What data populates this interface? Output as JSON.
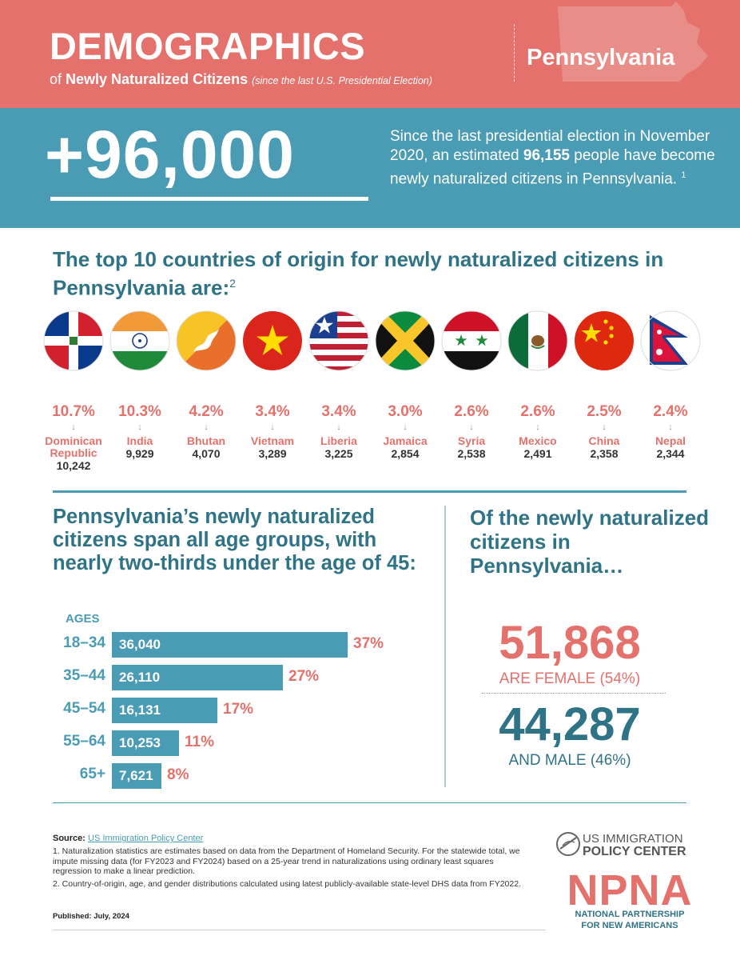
{
  "colors": {
    "coral": "#e4716b",
    "teal": "#4a9bb4",
    "dark_teal": "#2f7386"
  },
  "header": {
    "title": "DEMOGRAPHICS",
    "subtitle_prefix": "of ",
    "subtitle_bold": "Newly Naturalized Citizens",
    "subtitle_note": "(since the last U.S. Presidential Election)",
    "state": "Pennsylvania"
  },
  "highlight": {
    "big_number": "+96,000",
    "desc_1": "Since the last presidential election in November 2020, an estimated ",
    "desc_bold": "96,155",
    "desc_2": " people have become newly naturalized citizens in Pennsylvania.",
    "footnote": "1"
  },
  "countries": {
    "heading": "The top 10 countries of origin for newly naturalized citizens in Pennsylvania are:",
    "footnote": "2",
    "items": [
      {
        "name": "Dominican Republic",
        "pct": "10.7%",
        "count": "10,242",
        "flag": "dominican-republic"
      },
      {
        "name": "India",
        "pct": "10.3%",
        "count": "9,929",
        "flag": "india"
      },
      {
        "name": "Bhutan",
        "pct": "4.2%",
        "count": "4,070",
        "flag": "bhutan"
      },
      {
        "name": "Vietnam",
        "pct": "3.4%",
        "count": "3,289",
        "flag": "vietnam"
      },
      {
        "name": "Liberia",
        "pct": "3.4%",
        "count": "3,225",
        "flag": "liberia"
      },
      {
        "name": "Jamaica",
        "pct": "3.0%",
        "count": "2,854",
        "flag": "jamaica"
      },
      {
        "name": "Syria",
        "pct": "2.6%",
        "count": "2,538",
        "flag": "syria"
      },
      {
        "name": "Mexico",
        "pct": "2.6%",
        "count": "2,491",
        "flag": "mexico"
      },
      {
        "name": "China",
        "pct": "2.5%",
        "count": "2,358",
        "flag": "china"
      },
      {
        "name": "Nepal",
        "pct": "2.4%",
        "count": "2,344",
        "flag": "nepal"
      }
    ]
  },
  "ages": {
    "heading": "Pennsylvania’s newly naturalized citizens span all age groups, with nearly two-thirds under the age of 45:",
    "label": "AGES"
  },
  "gender": {
    "heading": "Of the newly naturalized citizens in Pennsylvania…",
    "female_num": "51,868",
    "female_label": "ARE FEMALE (54%)",
    "male_num": "44,287",
    "male_label": "AND MALE (46%)"
  },
  "chart_data": {
    "type": "bar",
    "orientation": "horizontal",
    "categories": [
      "18–34",
      "35–44",
      "45–54",
      "55–64",
      "65+"
    ],
    "values": [
      36040,
      26110,
      16131,
      10253,
      7621
    ],
    "value_labels": [
      "36,040",
      "26,110",
      "16,131",
      "10,253",
      "7,621"
    ],
    "percent_labels": [
      "37%",
      "27%",
      "17%",
      "11%",
      "8%"
    ],
    "ylabel": "AGES",
    "grid": false,
    "legend": "none"
  },
  "footer": {
    "source_label": "Source:",
    "source_link": "US Immigration Policy Center",
    "note_1": "1. Naturalization statistics are estimates based on data from the Department of Homeland Security. For the statewide total, we impute missing data (for FY2023 and FY2024) based on a 25-year trend in naturalizations using ordinary least squares regression to make a linear prediction.",
    "note_2": "2. Country-of-origin, age, and gender distributions calculated using latest publicly-available state-level DHS data from FY2022.",
    "published": "Published: July, 2024"
  },
  "logos": {
    "uipc_line1": "US IMMIGRATION",
    "uipc_line2": "POLICY CENTER",
    "npna": "NPNA",
    "npna_sub1": "NATIONAL PARTNERSHIP",
    "npna_sub2": "FOR NEW AMERICANS"
  }
}
